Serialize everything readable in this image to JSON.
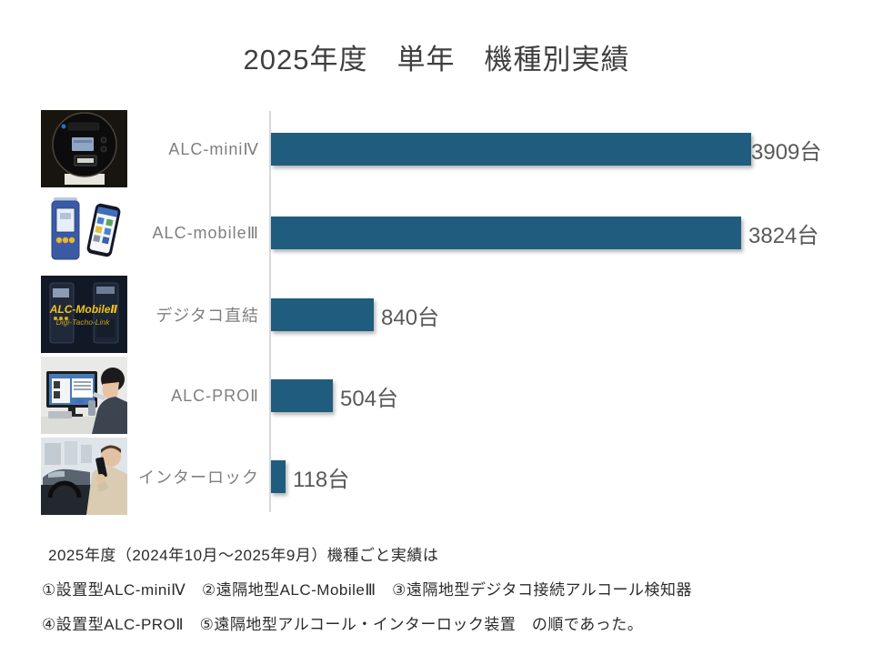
{
  "slide": {
    "title": "2025年度　単年　機種別実績",
    "footer_lines": [
      "2025年度（2024年10月〜2025年9月）機種ごと実績は",
      "①設置型ALC-miniⅣ　②遠隔地型ALC-MobileⅢ　③遠隔地型デジタコ接続アルコール検知器",
      "④設置型ALC-PROⅡ　⑤遠隔地型アルコール・インターロック装置　の順であった。"
    ]
  },
  "chart_data": {
    "type": "bar",
    "orientation": "horizontal",
    "title": "2025年度　単年　機種別実績",
    "categories": [
      "ALC-miniⅣ",
      "ALC-mobileⅢ",
      "デジタコ直結",
      "ALC-PROⅡ",
      "インターロック"
    ],
    "values": [
      3909,
      3824,
      840,
      504,
      118
    ],
    "value_labels": [
      "3909台",
      "3824台",
      "840台",
      "504台",
      "118台"
    ],
    "unit": "台",
    "xlim": [
      0,
      4000
    ],
    "grid": false,
    "legend": false,
    "bar_color": "#1f5c7d",
    "axis_line_color": "#d9d9d9",
    "category_label_color": "#7f7f7f",
    "value_label_color": "#595959"
  },
  "photos": {
    "digitaco_text_line1": "ALC-MobileⅡ",
    "digitaco_text_line2": "Digi-Tacho-Link"
  }
}
